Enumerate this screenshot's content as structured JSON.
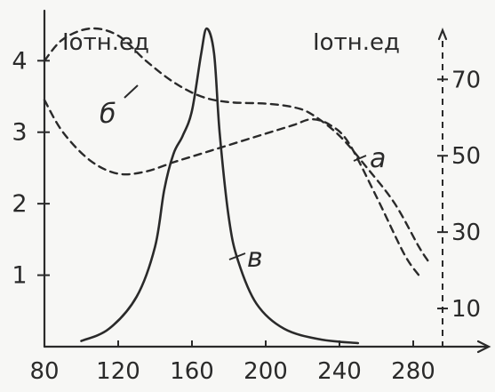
{
  "chart_data": {
    "type": "line",
    "title": "",
    "ylabel_left": "Iотн.ед",
    "ylabel_right": "Iотн.ед",
    "xlabel": "",
    "x_ticks": [
      "80",
      "120",
      "160",
      "200",
      "240",
      "280"
    ],
    "y_left_ticks": [
      "1",
      "2",
      "3",
      "4"
    ],
    "y_right_ticks": [
      "10",
      "30",
      "50",
      "70"
    ],
    "xlim": [
      80,
      320
    ],
    "ylim_left": [
      0,
      4.7
    ],
    "ylim_right": [
      0,
      88
    ],
    "grid": false,
    "series": [
      {
        "name": "а",
        "style": "dashed",
        "axis": "left",
        "x": [
          80,
          90,
          105,
          120,
          135,
          150,
          165,
          180,
          200,
          215,
          225,
          235,
          245,
          260,
          275,
          283
        ],
        "y": [
          3.45,
          3.0,
          2.6,
          2.42,
          2.45,
          2.58,
          2.7,
          2.82,
          2.98,
          3.1,
          3.18,
          3.1,
          2.85,
          2.1,
          1.3,
          1.0
        ]
      },
      {
        "name": "б",
        "style": "dashed",
        "axis": "left",
        "x": [
          80,
          90,
          105,
          120,
          135,
          150,
          165,
          180,
          200,
          215,
          225,
          240,
          255,
          270,
          283,
          288
        ],
        "y": [
          4.0,
          4.3,
          4.45,
          4.35,
          4.0,
          3.7,
          3.5,
          3.42,
          3.4,
          3.35,
          3.25,
          2.95,
          2.5,
          2.0,
          1.4,
          1.2
        ]
      },
      {
        "name": "в",
        "style": "solid",
        "axis": "left",
        "x": [
          100,
          115,
          130,
          140,
          145,
          150,
          155,
          160,
          165,
          168,
          172,
          175,
          180,
          185,
          195,
          210,
          230,
          250
        ],
        "y": [
          0.08,
          0.25,
          0.7,
          1.4,
          2.2,
          2.7,
          2.95,
          3.3,
          4.1,
          4.45,
          4.1,
          3.0,
          1.8,
          1.2,
          0.6,
          0.25,
          0.1,
          0.05
        ]
      }
    ]
  }
}
